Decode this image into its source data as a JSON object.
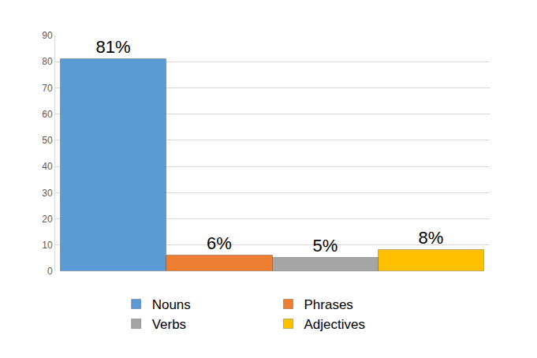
{
  "chart_data": {
    "type": "bar",
    "categories": [
      "Nouns",
      "Phrases",
      "Verbs",
      "Adjectives"
    ],
    "values": [
      81,
      6,
      5,
      8
    ],
    "value_labels": [
      "81%",
      "6%",
      "5%",
      "8%"
    ],
    "colors": [
      "#5b9bd5",
      "#ed7d31",
      "#a5a5a5",
      "#ffc000"
    ],
    "ylim": [
      0,
      90
    ],
    "yticks": [
      0,
      10,
      20,
      30,
      40,
      50,
      60,
      70,
      80,
      90
    ],
    "grid": true,
    "data_labels": true,
    "tick_labels": "y",
    "legend": "bottom"
  }
}
